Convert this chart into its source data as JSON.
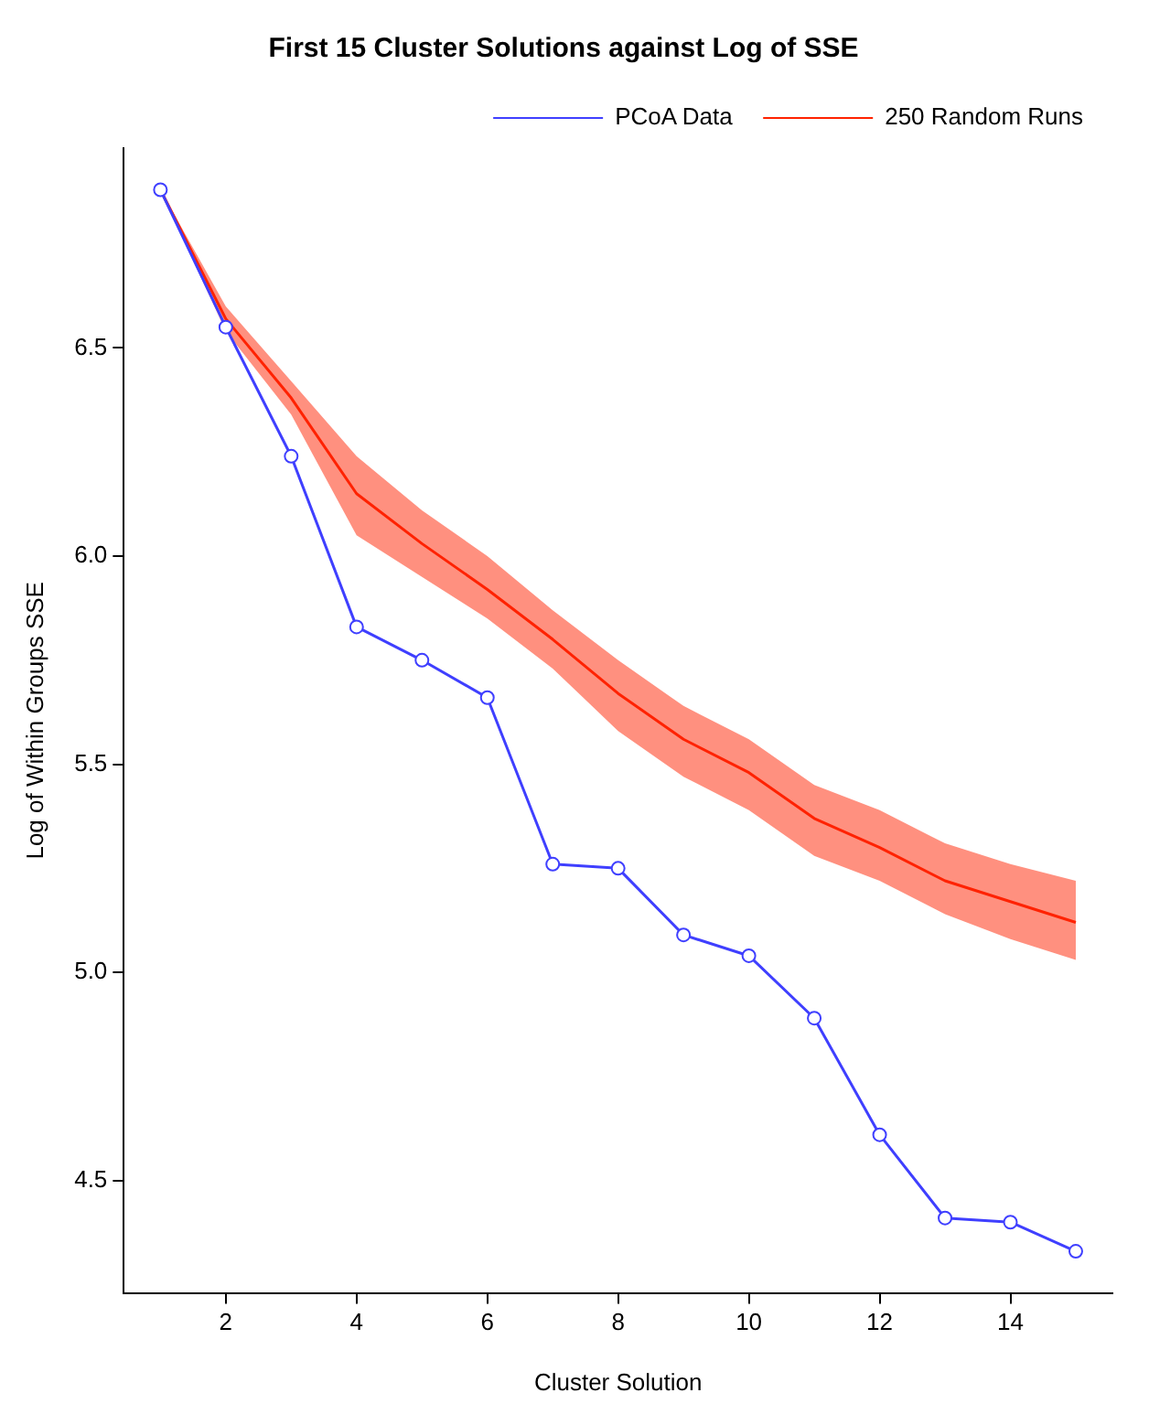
{
  "chart_data": {
    "type": "line",
    "title": "First 15 Cluster Solutions against Log of SSE",
    "xlabel": "Cluster Solution",
    "ylabel": "Log of Within Groups SSE",
    "x": [
      1,
      2,
      3,
      4,
      5,
      6,
      7,
      8,
      9,
      10,
      11,
      12,
      13,
      14,
      15
    ],
    "series": [
      {
        "name": "PCoA Data",
        "color": "#3f3fff",
        "marker": "circle",
        "values": [
          6.88,
          6.55,
          6.24,
          5.83,
          5.75,
          5.66,
          5.26,
          5.25,
          5.09,
          5.04,
          4.89,
          4.61,
          4.41,
          4.4,
          4.33
        ]
      },
      {
        "name": "250 Random Runs",
        "color": "#ff2200",
        "marker": "none",
        "values": [
          6.88,
          6.57,
          6.38,
          6.15,
          6.03,
          5.92,
          5.8,
          5.67,
          5.56,
          5.48,
          5.37,
          5.3,
          5.22,
          5.17,
          5.12
        ],
        "lower": [
          6.88,
          6.54,
          6.34,
          6.05,
          5.95,
          5.85,
          5.73,
          5.58,
          5.47,
          5.39,
          5.28,
          5.22,
          5.14,
          5.08,
          5.03
        ],
        "upper": [
          6.88,
          6.6,
          6.42,
          6.24,
          6.11,
          6.0,
          5.87,
          5.75,
          5.64,
          5.56,
          5.45,
          5.39,
          5.31,
          5.26,
          5.22
        ]
      }
    ],
    "xlim": [
      0.44,
      15.56
    ],
    "xticks": [
      2,
      4,
      6,
      8,
      10,
      12,
      14
    ],
    "ylim": [
      4.23,
      6.98
    ],
    "yticks": [
      4.5,
      {
        "value": 5,
        "label": "5.0"
      },
      5.5,
      {
        "value": 6,
        "label": "6.0"
      },
      6.5
    ],
    "grid": false,
    "legend": "top right"
  }
}
